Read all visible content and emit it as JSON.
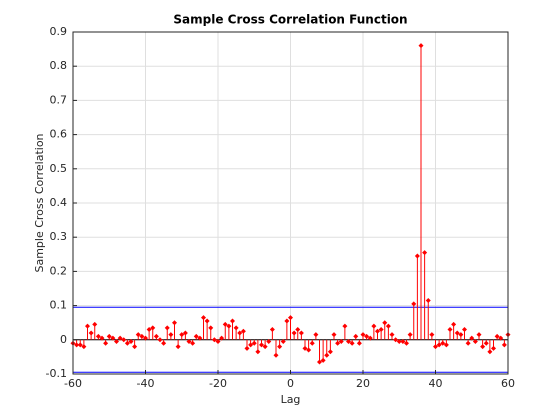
{
  "chart_data": {
    "type": "stem",
    "title": "Sample Cross Correlation Function",
    "xlabel": "Lag",
    "ylabel": "Sample Cross Correlation",
    "x": [
      -60,
      -59,
      -58,
      -57,
      -56,
      -55,
      -54,
      -53,
      -52,
      -51,
      -50,
      -49,
      -48,
      -47,
      -46,
      -45,
      -44,
      -43,
      -42,
      -41,
      -40,
      -39,
      -38,
      -37,
      -36,
      -35,
      -34,
      -33,
      -32,
      -31,
      -30,
      -29,
      -28,
      -27,
      -26,
      -25,
      -24,
      -23,
      -22,
      -21,
      -20,
      -19,
      -18,
      -17,
      -16,
      -15,
      -14,
      -13,
      -12,
      -11,
      -10,
      -9,
      -8,
      -7,
      -6,
      -5,
      -4,
      -3,
      -2,
      -1,
      0,
      1,
      2,
      3,
      4,
      5,
      6,
      7,
      8,
      9,
      10,
      11,
      12,
      13,
      14,
      15,
      16,
      17,
      18,
      19,
      20,
      21,
      22,
      23,
      24,
      25,
      26,
      27,
      28,
      29,
      30,
      31,
      32,
      33,
      34,
      35,
      36,
      37,
      38,
      39,
      40,
      41,
      42,
      43,
      44,
      45,
      46,
      47,
      48,
      49,
      50,
      51,
      52,
      53,
      54,
      55,
      56,
      57,
      58,
      59,
      60
    ],
    "values": [
      -0.01,
      -0.015,
      -0.015,
      -0.02,
      0.04,
      0.02,
      0.045,
      0.01,
      0.005,
      -0.01,
      0.01,
      0.005,
      -0.005,
      0.005,
      0.0,
      -0.01,
      -0.005,
      -0.02,
      0.015,
      0.01,
      0.005,
      0.03,
      0.035,
      0.01,
      0.0,
      -0.01,
      0.035,
      0.015,
      0.05,
      -0.02,
      0.015,
      0.02,
      -0.005,
      -0.01,
      0.01,
      0.005,
      0.065,
      0.055,
      0.035,
      0.0,
      -0.005,
      0.005,
      0.045,
      0.04,
      0.055,
      0.035,
      0.02,
      0.025,
      -0.025,
      -0.015,
      -0.01,
      -0.035,
      -0.015,
      -0.02,
      -0.005,
      0.03,
      -0.045,
      -0.02,
      -0.005,
      0.055,
      0.065,
      0.02,
      0.03,
      0.02,
      -0.025,
      -0.03,
      -0.01,
      0.015,
      -0.065,
      -0.06,
      -0.045,
      -0.035,
      0.015,
      -0.01,
      -0.005,
      0.04,
      -0.005,
      -0.01,
      0.01,
      -0.01,
      0.015,
      0.01,
      0.005,
      0.04,
      0.025,
      0.03,
      0.05,
      0.04,
      0.015,
      0.0,
      -0.005,
      -0.005,
      -0.01,
      0.015,
      0.105,
      0.245,
      0.86,
      0.255,
      0.115,
      0.015,
      -0.02,
      -0.015,
      -0.01,
      -0.015,
      0.03,
      0.045,
      0.02,
      0.015,
      0.03,
      -0.01,
      0.005,
      -0.005,
      0.015,
      -0.02,
      -0.01,
      -0.035,
      -0.025,
      0.01,
      0.005,
      -0.015,
      0.015
    ],
    "color": "#ff0000",
    "confidence_bounds": [
      0.095,
      -0.095
    ],
    "bounds_color": "#0000ff",
    "xlim": [
      -60,
      60
    ],
    "xticks": [
      -60,
      -40,
      -20,
      0,
      20,
      40,
      60
    ],
    "ylim": [
      -0.1,
      0.9
    ],
    "yticks": [
      -0.1,
      0,
      0.1,
      0.2,
      0.3,
      0.4,
      0.5,
      0.6,
      0.7,
      0.8,
      0.9
    ],
    "grid": true
  }
}
